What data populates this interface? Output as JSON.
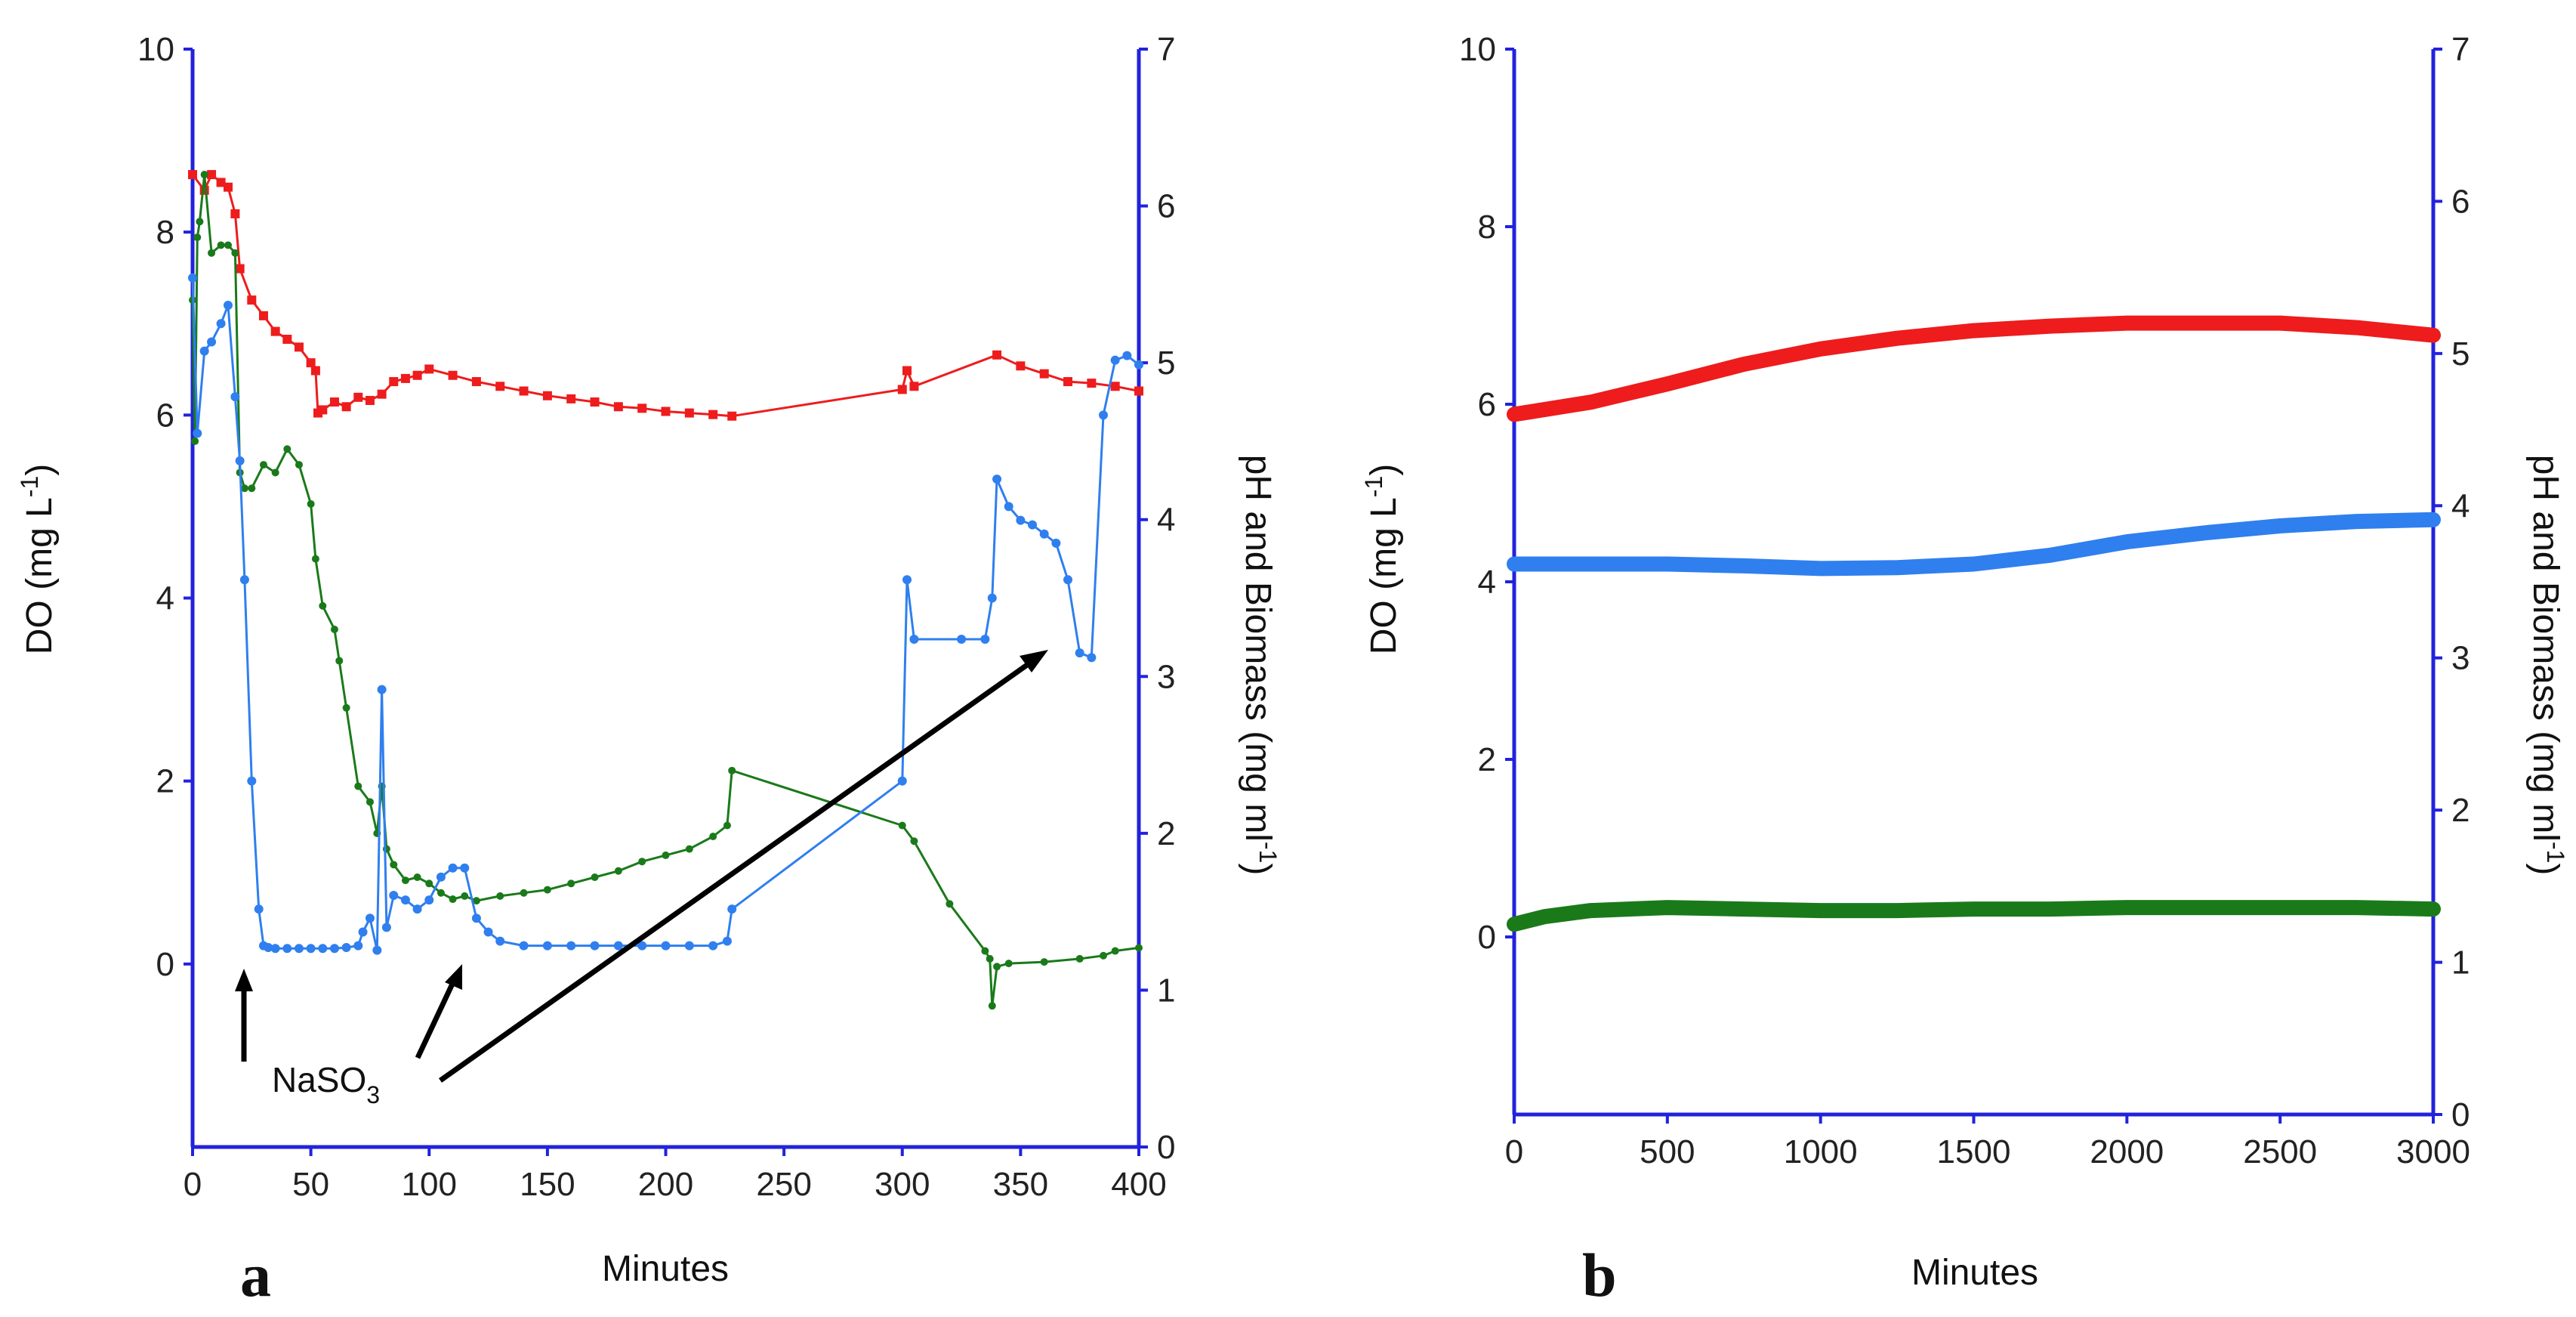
{
  "chart_data": [
    {
      "type": "line",
      "panel": "a",
      "xlabel": "Minutes",
      "ylabel": "DO (mg L",
      "ylabel_sup": "-1",
      "ylabel_end": ")",
      "y2label": "pH and Biomass (mg ml",
      "y2label_sup": "-1",
      "y2label_end": ")",
      "xlim": [
        0,
        400
      ],
      "ylim": [
        -2,
        10
      ],
      "y2lim": [
        0,
        7
      ],
      "xticks": [
        "0",
        "50",
        "100",
        "150",
        "200",
        "250",
        "300",
        "350",
        "400"
      ],
      "yticks": [
        "0",
        "2",
        "4",
        "6",
        "8",
        "10"
      ],
      "y2ticks": [
        "0",
        "1",
        "2",
        "3",
        "4",
        "5",
        "6",
        "7"
      ],
      "annotation": {
        "text": "NaSO",
        "sub": "3"
      },
      "series": [
        {
          "name": "pH",
          "axis": "right",
          "color": "#ee1c1c",
          "x": [
            0,
            5,
            8,
            12,
            15,
            18,
            20,
            25,
            30,
            35,
            40,
            45,
            50,
            52,
            53,
            55,
            60,
            65,
            70,
            75,
            80,
            85,
            90,
            95,
            100,
            110,
            120,
            130,
            140,
            150,
            160,
            170,
            180,
            190,
            200,
            210,
            220,
            228,
            300,
            302,
            305,
            340,
            350,
            360,
            370,
            380,
            390,
            400
          ],
          "y": [
            6.2,
            6.1,
            6.2,
            6.15,
            6.12,
            5.95,
            5.6,
            5.4,
            5.3,
            5.2,
            5.15,
            5.1,
            5.0,
            4.95,
            4.68,
            4.7,
            4.75,
            4.72,
            4.78,
            4.76,
            4.8,
            4.88,
            4.9,
            4.92,
            4.96,
            4.92,
            4.88,
            4.85,
            4.82,
            4.79,
            4.77,
            4.75,
            4.72,
            4.71,
            4.69,
            4.68,
            4.67,
            4.66,
            4.83,
            4.95,
            4.85,
            5.05,
            4.98,
            4.93,
            4.88,
            4.87,
            4.85,
            4.82
          ]
        },
        {
          "name": "Biomass",
          "axis": "right",
          "color": "#1a7a1a",
          "x": [
            0,
            1,
            2,
            3,
            5,
            8,
            12,
            15,
            18,
            20,
            22,
            25,
            30,
            35,
            40,
            45,
            50,
            52,
            55,
            60,
            62,
            65,
            70,
            75,
            78,
            80,
            82,
            85,
            90,
            95,
            100,
            105,
            110,
            115,
            120,
            130,
            140,
            150,
            160,
            170,
            180,
            190,
            200,
            210,
            220,
            226,
            228,
            300,
            305,
            320,
            335,
            337,
            338,
            340,
            345,
            360,
            375,
            385,
            390,
            400
          ],
          "y": [
            5.4,
            4.5,
            5.8,
            5.9,
            6.2,
            5.7,
            5.75,
            5.75,
            5.7,
            4.3,
            4.2,
            4.2,
            4.35,
            4.3,
            4.45,
            4.35,
            4.1,
            3.75,
            3.45,
            3.3,
            3.1,
            2.8,
            2.3,
            2.2,
            2.0,
            2.3,
            1.9,
            1.8,
            1.7,
            1.72,
            1.68,
            1.62,
            1.58,
            1.6,
            1.57,
            1.6,
            1.62,
            1.64,
            1.68,
            1.72,
            1.76,
            1.82,
            1.86,
            1.9,
            1.98,
            2.05,
            2.4,
            2.05,
            1.95,
            1.55,
            1.25,
            1.2,
            0.9,
            1.15,
            1.17,
            1.18,
            1.2,
            1.22,
            1.25,
            1.27
          ]
        },
        {
          "name": "DO",
          "axis": "left",
          "color": "#2f7fef",
          "x": [
            0,
            2,
            5,
            8,
            12,
            15,
            18,
            20,
            22,
            25,
            28,
            30,
            32,
            35,
            40,
            45,
            50,
            55,
            60,
            65,
            70,
            72,
            75,
            78,
            80,
            82,
            85,
            90,
            95,
            100,
            105,
            110,
            115,
            120,
            125,
            130,
            140,
            150,
            160,
            170,
            180,
            190,
            200,
            210,
            220,
            226,
            228,
            300,
            302,
            305,
            325,
            335,
            338,
            340,
            345,
            350,
            355,
            360,
            365,
            370,
            375,
            380,
            385,
            390,
            395,
            400
          ],
          "y": [
            7.5,
            5.8,
            6.7,
            6.8,
            7.0,
            7.2,
            6.2,
            5.5,
            4.2,
            2.0,
            0.6,
            0.2,
            0.18,
            0.17,
            0.17,
            0.17,
            0.17,
            0.17,
            0.17,
            0.18,
            0.2,
            0.35,
            0.5,
            0.15,
            3.0,
            0.4,
            0.75,
            0.7,
            0.6,
            0.7,
            0.95,
            1.05,
            1.05,
            0.5,
            0.35,
            0.25,
            0.2,
            0.2,
            0.2,
            0.2,
            0.2,
            0.2,
            0.2,
            0.2,
            0.2,
            0.25,
            0.6,
            2.0,
            4.2,
            3.55,
            3.55,
            3.55,
            4.0,
            5.3,
            5.0,
            4.85,
            4.8,
            4.7,
            4.6,
            4.2,
            3.4,
            3.35,
            6.0,
            6.6,
            6.65,
            6.55
          ]
        }
      ]
    },
    {
      "type": "line",
      "panel": "b",
      "xlabel": "Minutes",
      "ylabel": "DO (mg L",
      "ylabel_sup": "-1",
      "ylabel_end": ")",
      "y2label": "pH and Biomass (mg ml",
      "y2label_sup": "-1",
      "y2label_end": ")",
      "xlim": [
        0,
        3000
      ],
      "ylim": [
        -2,
        10
      ],
      "y2lim": [
        0,
        7
      ],
      "xticks": [
        "0",
        "500",
        "1000",
        "1500",
        "2000",
        "2500",
        "3000"
      ],
      "yticks": [
        "0",
        "2",
        "4",
        "6",
        "8",
        "10"
      ],
      "y2ticks": [
        "0",
        "1",
        "2",
        "3",
        "4",
        "5",
        "6",
        "7"
      ],
      "series": [
        {
          "name": "pH",
          "axis": "right",
          "color": "#ee1c1c",
          "x": [
            0,
            250,
            500,
            750,
            1000,
            1250,
            1500,
            1750,
            2000,
            2250,
            2500,
            2750,
            3000
          ],
          "y": [
            4.6,
            4.68,
            4.8,
            4.93,
            5.03,
            5.1,
            5.15,
            5.18,
            5.2,
            5.2,
            5.2,
            5.17,
            5.12
          ]
        },
        {
          "name": "DO",
          "axis": "left",
          "color": "#2f7fef",
          "x": [
            0,
            250,
            500,
            750,
            1000,
            1250,
            1500,
            1750,
            2000,
            2250,
            2500,
            2750,
            3000
          ],
          "y": [
            4.2,
            4.2,
            4.2,
            4.18,
            4.15,
            4.16,
            4.2,
            4.3,
            4.45,
            4.55,
            4.63,
            4.68,
            4.7
          ]
        },
        {
          "name": "Biomass",
          "axis": "right",
          "color": "#1a7a1a",
          "x": [
            0,
            100,
            250,
            500,
            750,
            1000,
            1250,
            1500,
            1750,
            2000,
            2250,
            2500,
            2750,
            3000
          ],
          "y": [
            1.25,
            1.3,
            1.34,
            1.36,
            1.35,
            1.34,
            1.34,
            1.35,
            1.35,
            1.36,
            1.36,
            1.36,
            1.36,
            1.35
          ]
        }
      ]
    }
  ]
}
